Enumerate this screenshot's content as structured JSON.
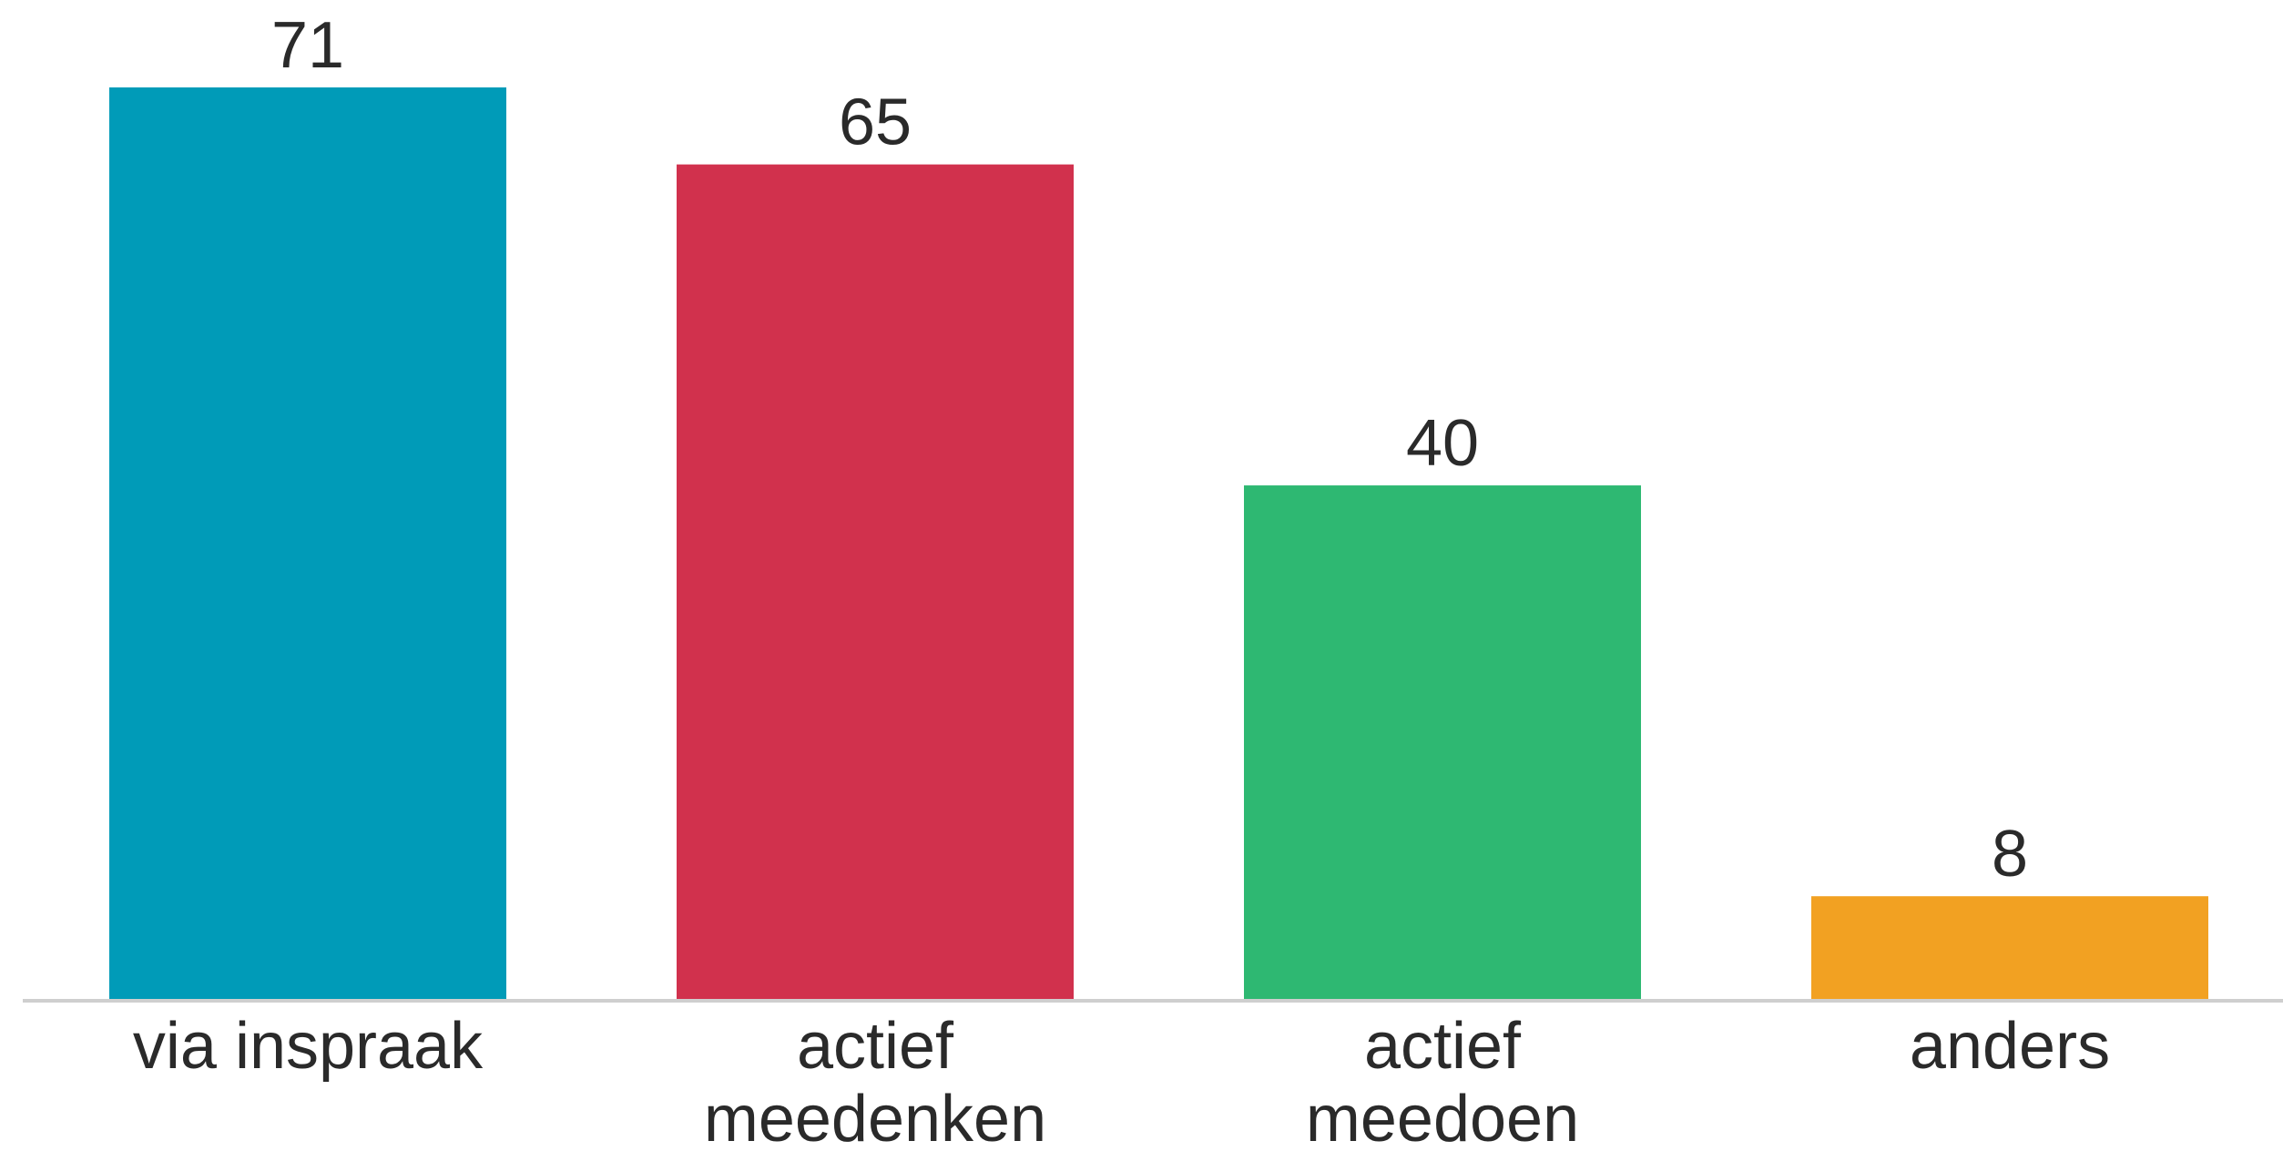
{
  "chart_data": {
    "type": "bar",
    "title": "",
    "xlabel": "",
    "ylabel": "",
    "categories": [
      "via inspraak",
      "actief meedenken",
      "actief meedoen",
      "anders"
    ],
    "category_lines": [
      [
        "via inspraak"
      ],
      [
        "actief",
        "meedenken"
      ],
      [
        "actief",
        "meedoen"
      ],
      [
        "anders"
      ]
    ],
    "values": [
      71,
      65,
      40,
      8
    ],
    "value_labels": [
      "71",
      "65",
      "40",
      "8"
    ],
    "colors": [
      "#009BB8",
      "#D1314D",
      "#2EB872",
      "#F2A122"
    ],
    "ylim": [
      0,
      71
    ],
    "grid": false,
    "legend": "none"
  }
}
